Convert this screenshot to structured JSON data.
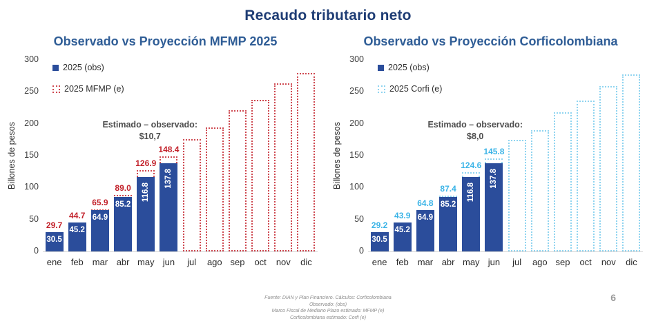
{
  "page": {
    "title": "Recaudo tributario neto",
    "page_number": "6"
  },
  "chart_data": [
    {
      "type": "bar",
      "title": "Observado vs Proyección MFMP 2025",
      "categories": [
        "ene",
        "feb",
        "mar",
        "abr",
        "may",
        "jun",
        "jul",
        "ago",
        "sep",
        "oct",
        "nov",
        "dic"
      ],
      "series": [
        {
          "name": "2025 (obs)",
          "values": [
            30.5,
            45.2,
            64.9,
            85.2,
            116.8,
            137.8,
            null,
            null,
            null,
            null,
            null,
            null
          ],
          "labels": [
            "30.5",
            "45.2",
            "64.9",
            "85.2",
            "116.8",
            "137.8"
          ],
          "color": "#2B4D9B",
          "style": "solid"
        },
        {
          "name": "2025 MFMP (e)",
          "values": [
            29.7,
            44.7,
            65.9,
            89.0,
            126.9,
            148.4,
            176,
            194,
            221,
            237,
            263,
            280
          ],
          "labels": [
            "29.7",
            "44.7",
            "65.9",
            "89.0",
            "126.9",
            "148.4"
          ],
          "color": "#C3232C",
          "border_color": "#CE4850",
          "style": "dashed-outline"
        }
      ],
      "ylabel": "Billones de pesos",
      "ylim": [
        0,
        300
      ],
      "yticks": [
        0,
        50,
        100,
        150,
        200,
        250,
        300
      ],
      "grid": false,
      "legend_position": "top-left-inside",
      "annotation": {
        "line1": "Estimado – observado:",
        "line2": "$10,7"
      }
    },
    {
      "type": "bar",
      "title": "Observado vs Proyección Corficolombiana",
      "categories": [
        "ene",
        "feb",
        "mar",
        "abr",
        "may",
        "jun",
        "jul",
        "ago",
        "sep",
        "oct",
        "nov",
        "dic"
      ],
      "series": [
        {
          "name": "2025 (obs)",
          "values": [
            30.5,
            45.2,
            64.9,
            85.2,
            116.8,
            137.8,
            null,
            null,
            null,
            null,
            null,
            null
          ],
          "labels": [
            "30.5",
            "45.2",
            "64.9",
            "85.2",
            "116.8",
            "137.8"
          ],
          "color": "#2B4D9B",
          "style": "solid"
        },
        {
          "name": "2025 Corfi (e)",
          "values": [
            29.2,
            43.9,
            64.8,
            87.4,
            124.6,
            145.8,
            175,
            190,
            218,
            236,
            259,
            277
          ],
          "labels": [
            "29.2",
            "43.9",
            "64.8",
            "87.4",
            "124.6",
            "145.8"
          ],
          "color": "#3BB4E7",
          "border_color": "#8FD4F0",
          "style": "dashed-outline"
        }
      ],
      "ylabel": "Billones de pesos",
      "ylim": [
        0,
        300
      ],
      "yticks": [
        0,
        50,
        100,
        150,
        200,
        250,
        300
      ],
      "grid": false,
      "legend_position": "top-left-inside",
      "annotation": {
        "line1": "Estimado – observado:",
        "line2": "$8,0"
      }
    }
  ],
  "footer": {
    "lines": [
      "Fuente: DIAN y Plan Financiero. Cálculos: Corficolombiana",
      "Observado: (obs)",
      "Marco Fiscal de Mediano Plazo estimado: MFMP (e)",
      "Corficolombiana estimado: Corfi (e)"
    ]
  }
}
